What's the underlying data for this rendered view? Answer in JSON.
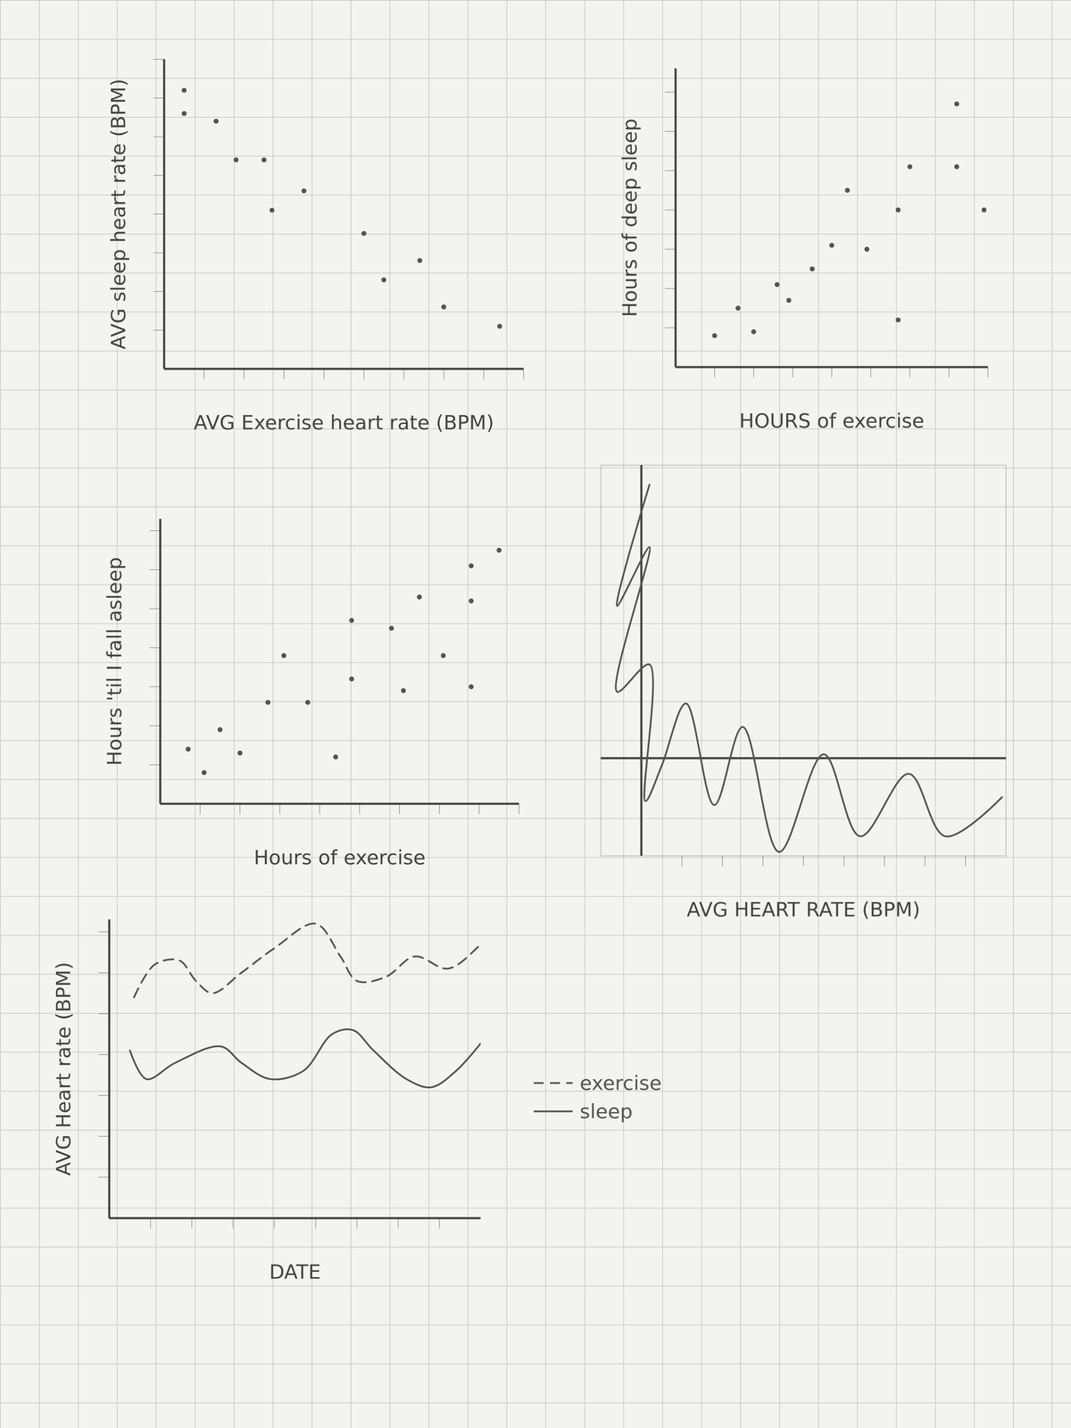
{
  "chart_data": [
    {
      "type": "scatter",
      "x_label": "AVG Exercise heart rate (BPM)",
      "y_label": "AVG sleep heart rate (BPM)",
      "x": [
        0.5,
        0.5,
        1.3,
        1.8,
        2.5,
        2.7,
        3.5,
        5.0,
        6.4,
        5.5,
        7.0,
        8.4
      ],
      "values": [
        7.2,
        6.6,
        6.4,
        5.4,
        5.4,
        4.1,
        4.6,
        3.5,
        2.8,
        2.3,
        1.6,
        1.1
      ],
      "xlim": [
        0,
        9
      ],
      "xticks": [
        1,
        2,
        3,
        4,
        5,
        6,
        7,
        8,
        9
      ],
      "ylim": [
        0,
        8
      ],
      "yticks": [
        1,
        2,
        3,
        4,
        5,
        6,
        7,
        8
      ],
      "tick_labels": false,
      "color": "#555555",
      "marker": "dot"
    },
    {
      "type": "scatter",
      "x_label": "HOURS of exercise",
      "y_label": "Hours of deep sleep",
      "x": [
        1.0,
        1.6,
        2.0,
        2.6,
        2.9,
        3.5,
        4.0,
        4.9,
        4.4,
        5.7,
        5.7,
        6.0,
        7.2,
        7.9,
        7.2
      ],
      "values": [
        0.8,
        1.5,
        0.9,
        2.1,
        1.7,
        2.5,
        3.1,
        3.0,
        4.5,
        4.0,
        1.2,
        5.1,
        5.1,
        4.0,
        6.7
      ],
      "xlim": [
        0,
        8
      ],
      "xticks": [
        1,
        2,
        3,
        4,
        5,
        6,
        7,
        8
      ],
      "ylim": [
        0,
        7.6
      ],
      "yticks": [
        1,
        2,
        3,
        4,
        5,
        6,
        7
      ],
      "tick_labels": false,
      "color": "#555555",
      "marker": "dot"
    },
    {
      "type": "scatter",
      "x_label": "Hours of exercise",
      "y_label": "Hours 'til I fall asleep",
      "x": [
        0.7,
        1.1,
        1.5,
        2.0,
        2.7,
        3.1,
        3.7,
        4.4,
        4.8,
        4.8,
        5.8,
        6.1,
        6.5,
        7.1,
        7.8,
        7.8,
        7.8,
        8.5
      ],
      "values": [
        1.4,
        0.8,
        1.9,
        1.3,
        2.6,
        3.8,
        2.6,
        1.2,
        3.2,
        4.7,
        4.5,
        2.9,
        5.3,
        3.8,
        5.2,
        3.0,
        6.1,
        6.5
      ],
      "xlim": [
        0,
        9
      ],
      "xticks": [
        1,
        2,
        3,
        4,
        5,
        6,
        7,
        8,
        9
      ],
      "ylim": [
        0,
        7.3
      ],
      "yticks": [
        1,
        2,
        3,
        4,
        5,
        6,
        7
      ],
      "tick_labels": false,
      "color": "#555555",
      "marker": "dot"
    },
    {
      "type": "line",
      "x_label": "AVG HEART RATE (BPM)",
      "x": [
        0.2,
        -0.6,
        0.2,
        -0.6,
        0.2,
        0.1,
        0.5,
        1.1,
        1.8,
        2.5,
        3.4,
        4.5,
        5.4,
        6.6,
        7.5,
        8.9
      ],
      "values": [
        7.0,
        3.9,
        5.4,
        1.7,
        2.4,
        -1.1,
        -0.2,
        1.4,
        -1.2,
        0.8,
        -2.4,
        0.1,
        -2.0,
        -0.4,
        -2.0,
        -1.0
      ],
      "xlim": [
        -1,
        9
      ],
      "xticks": [
        1,
        2,
        3,
        4,
        5,
        6,
        7,
        8
      ],
      "ylim": [
        -2.5,
        7.5
      ],
      "yticks": [],
      "tick_labels": false,
      "color": "#555555",
      "line_style": "solid"
    },
    {
      "type": "line",
      "x_label": "DATE",
      "y_label": "AVG Heart rate (BPM)",
      "series": [
        {
          "name": "exercise",
          "color": "#555555",
          "line_style": "dashed",
          "x": [
            0.6,
            1.1,
            1.7,
            2.1,
            2.5,
            3.2,
            4.0,
            5.0,
            5.6,
            6.0,
            6.7,
            7.4,
            8.2,
            8.9,
            9.3
          ],
          "values": [
            5.4,
            6.2,
            6.3,
            5.8,
            5.5,
            6.0,
            6.6,
            7.2,
            6.4,
            5.8,
            5.9,
            6.4,
            6.1,
            6.6,
            7.1
          ]
        },
        {
          "name": "sleep",
          "color": "#555555",
          "line_style": "solid",
          "x": [
            0.5,
            0.9,
            1.6,
            2.7,
            3.2,
            3.9,
            4.7,
            5.4,
            5.9,
            6.4,
            7.2,
            7.8,
            8.4,
            9.1
          ],
          "values": [
            4.1,
            3.4,
            3.8,
            4.2,
            3.8,
            3.4,
            3.6,
            4.5,
            4.6,
            4.1,
            3.4,
            3.2,
            3.6,
            4.4
          ]
        }
      ],
      "xlim": [
        0,
        9
      ],
      "xticks": [
        1,
        2,
        3,
        4,
        5,
        6,
        7,
        8
      ],
      "ylim": [
        0,
        7.3
      ],
      "yticks": [
        1,
        2,
        3,
        4,
        5,
        6,
        7
      ],
      "tick_labels": false,
      "legend": "right"
    }
  ]
}
